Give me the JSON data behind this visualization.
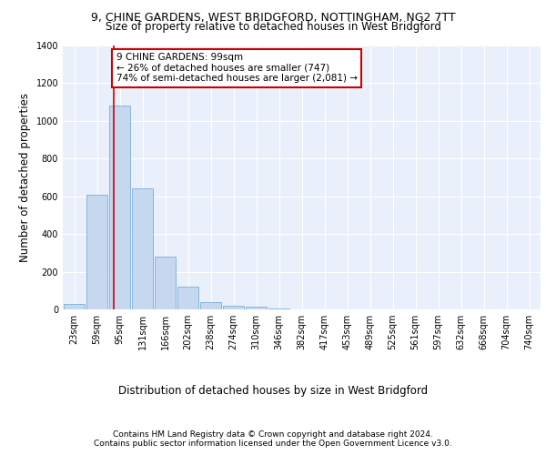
{
  "title1": "9, CHINE GARDENS, WEST BRIDGFORD, NOTTINGHAM, NG2 7TT",
  "title2": "Size of property relative to detached houses in West Bridgford",
  "xlabel": "Distribution of detached houses by size in West Bridgford",
  "ylabel": "Number of detached properties",
  "footnote1": "Contains HM Land Registry data © Crown copyright and database right 2024.",
  "footnote2": "Contains public sector information licensed under the Open Government Licence v3.0.",
  "bar_labels": [
    "23sqm",
    "59sqm",
    "95sqm",
    "131sqm",
    "166sqm",
    "202sqm",
    "238sqm",
    "274sqm",
    "310sqm",
    "346sqm",
    "382sqm",
    "417sqm",
    "453sqm",
    "489sqm",
    "525sqm",
    "561sqm",
    "597sqm",
    "632sqm",
    "668sqm",
    "704sqm",
    "740sqm"
  ],
  "bar_values": [
    30,
    610,
    1080,
    640,
    280,
    120,
    40,
    20,
    15,
    5,
    0,
    0,
    0,
    0,
    0,
    0,
    0,
    0,
    0,
    0,
    0
  ],
  "bar_color": "#c5d8f0",
  "bar_edgecolor": "#7aaed6",
  "property_line_x": 1.74,
  "annotation_text": "9 CHINE GARDENS: 99sqm\n← 26% of detached houses are smaller (747)\n74% of semi-detached houses are larger (2,081) →",
  "annotation_box_color": "#ffffff",
  "annotation_border_color": "#cc0000",
  "vline_color": "#cc0000",
  "ylim": [
    0,
    1400
  ],
  "background_color": "#eaf0fb",
  "grid_color": "#ffffff",
  "title1_fontsize": 9,
  "title2_fontsize": 8.5,
  "xlabel_fontsize": 8.5,
  "ylabel_fontsize": 8.5,
  "tick_fontsize": 7,
  "footnote_fontsize": 6.5,
  "annot_fontsize": 7.5
}
